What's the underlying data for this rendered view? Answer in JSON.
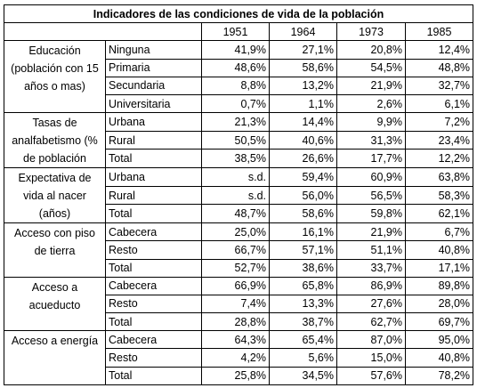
{
  "title": "Indicadores de las condiciones de vida de la población",
  "years": [
    "1951",
    "1964",
    "1973",
    "1985"
  ],
  "groups": [
    {
      "label": "Educación (población con 15 años o mas)",
      "rows": [
        {
          "sub": "Ninguna",
          "values": [
            "41,9%",
            "27,1%",
            "20,8%",
            "12,4%"
          ]
        },
        {
          "sub": "Primaria",
          "values": [
            "48,6%",
            "58,6%",
            "54,5%",
            "48,8%"
          ]
        },
        {
          "sub": "Secundaria",
          "values": [
            "8,8%",
            "13,2%",
            "21,9%",
            "32,7%"
          ]
        },
        {
          "sub": "Universitaria",
          "values": [
            "0,7%",
            "1,1%",
            "2,6%",
            "6,1%"
          ]
        }
      ]
    },
    {
      "label": "Tasas de analfabetismo (% de población",
      "rows": [
        {
          "sub": "Urbana",
          "values": [
            "21,3%",
            "14,4%",
            "9,9%",
            "7,2%"
          ]
        },
        {
          "sub": "Rural",
          "values": [
            "50,5%",
            "40,6%",
            "31,3%",
            "23,4%"
          ]
        },
        {
          "sub": "Total",
          "values": [
            "38,5%",
            "26,6%",
            "17,7%",
            "12,2%"
          ]
        }
      ]
    },
    {
      "label": "Expectativa de vida al nacer (años)",
      "rows": [
        {
          "sub": "Urbana",
          "values": [
            "s.d.",
            "59,4%",
            "60,9%",
            "63,8%"
          ]
        },
        {
          "sub": "Rural",
          "values": [
            "s.d.",
            "56,0%",
            "56,5%",
            "58,3%"
          ]
        },
        {
          "sub": "Total",
          "values": [
            "48,7%",
            "58,6%",
            "59,8%",
            "62,1%"
          ]
        }
      ]
    },
    {
      "label": "Acceso con piso de tierra",
      "rows": [
        {
          "sub": "Cabecera",
          "values": [
            "25,0%",
            "16,1%",
            "21,9%",
            "6,7%"
          ]
        },
        {
          "sub": "Resto",
          "values": [
            "66,7%",
            "57,1%",
            "51,1%",
            "40,8%"
          ]
        },
        {
          "sub": "Total",
          "values": [
            "52,7%",
            "38,6%",
            "33,7%",
            "17,1%"
          ]
        }
      ]
    },
    {
      "label": "Acceso a acueducto",
      "rows": [
        {
          "sub": "Cabecera",
          "values": [
            "66,9%",
            "65,8%",
            "86,9%",
            "89,8%"
          ]
        },
        {
          "sub": "Resto",
          "values": [
            "7,4%",
            "13,3%",
            "27,6%",
            "28,0%"
          ]
        },
        {
          "sub": "Total",
          "values": [
            "28,8%",
            "38,7%",
            "62,7%",
            "69,7%"
          ]
        }
      ]
    },
    {
      "label": "Acceso a energía",
      "rows": [
        {
          "sub": "Cabecera",
          "values": [
            "64,3%",
            "65,4%",
            "87,0%",
            "95,0%"
          ]
        },
        {
          "sub": "Resto",
          "values": [
            "4,2%",
            "5,6%",
            "15,0%",
            "40,8%"
          ]
        },
        {
          "sub": "Total",
          "values": [
            "25,8%",
            "34,5%",
            "57,6%",
            "78,2%"
          ]
        }
      ]
    }
  ]
}
